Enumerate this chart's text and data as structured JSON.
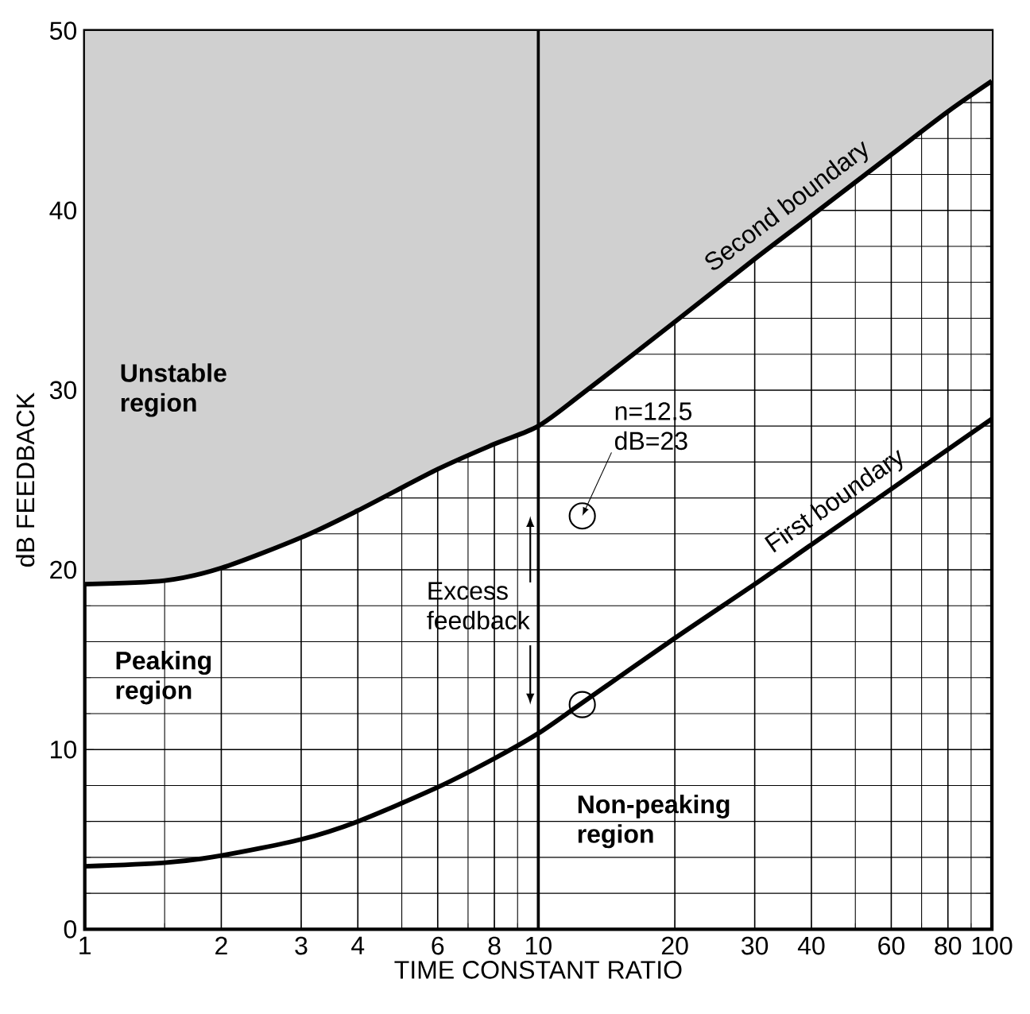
{
  "chart_data": {
    "type": "line",
    "xlabel": "TIME CONSTANT RATIO",
    "ylabel": "dB FEEDBACK",
    "log": "x",
    "grid": true,
    "xlim": [
      1,
      100
    ],
    "ylim": [
      0,
      50
    ],
    "xticks": [
      1,
      2,
      3,
      4,
      6,
      8,
      10,
      20,
      30,
      40,
      60,
      80,
      100
    ],
    "yticks": [
      0,
      10,
      20,
      30,
      40,
      50
    ],
    "series": [
      {
        "name": "Unstable region",
        "type": "area",
        "color": "#d0d0d0",
        "x": [
          1,
          1.5,
          2,
          3,
          4,
          6,
          8,
          10,
          12.5,
          20,
          30,
          40,
          60,
          80,
          100
        ],
        "values": [
          50,
          50,
          50,
          50,
          50,
          50,
          50,
          50,
          50,
          50,
          50,
          50,
          50,
          50,
          50
        ]
      },
      {
        "name": "Second boundary",
        "color": "#000000",
        "x": [
          1,
          1.5,
          2,
          3,
          4,
          6,
          8,
          10,
          12.5,
          20,
          30,
          40,
          60,
          80,
          100
        ],
        "values": [
          19.2,
          19.4,
          20.1,
          21.8,
          23.3,
          25.6,
          27,
          28,
          29.8,
          33.8,
          37.3,
          39.7,
          43.1,
          45.5,
          47.2
        ]
      },
      {
        "name": "First boundary",
        "color": "#000000",
        "x": [
          1,
          1.5,
          2,
          3,
          4,
          6,
          8,
          10,
          12.5,
          20,
          30,
          40,
          60,
          80,
          100
        ],
        "values": [
          3.5,
          3.7,
          4.1,
          5,
          6,
          7.9,
          9.5,
          10.9,
          12.6,
          16.2,
          19.2,
          21.4,
          24.5,
          26.7,
          28.4
        ]
      },
      {
        "type": "scatter",
        "color": "#000000",
        "marker": "circle",
        "x": [
          12.5,
          12.5
        ],
        "values": [
          23,
          12.5
        ]
      }
    ],
    "ref_lines": [
      {
        "axis": "x",
        "value": 10,
        "color": "#000000"
      }
    ],
    "annotations": [
      "Peaking region",
      "Non-peaking region",
      "Excess feedback",
      {
        "text": "n=12.5 dB=23",
        "x": 12.5,
        "y": 23
      }
    ]
  }
}
